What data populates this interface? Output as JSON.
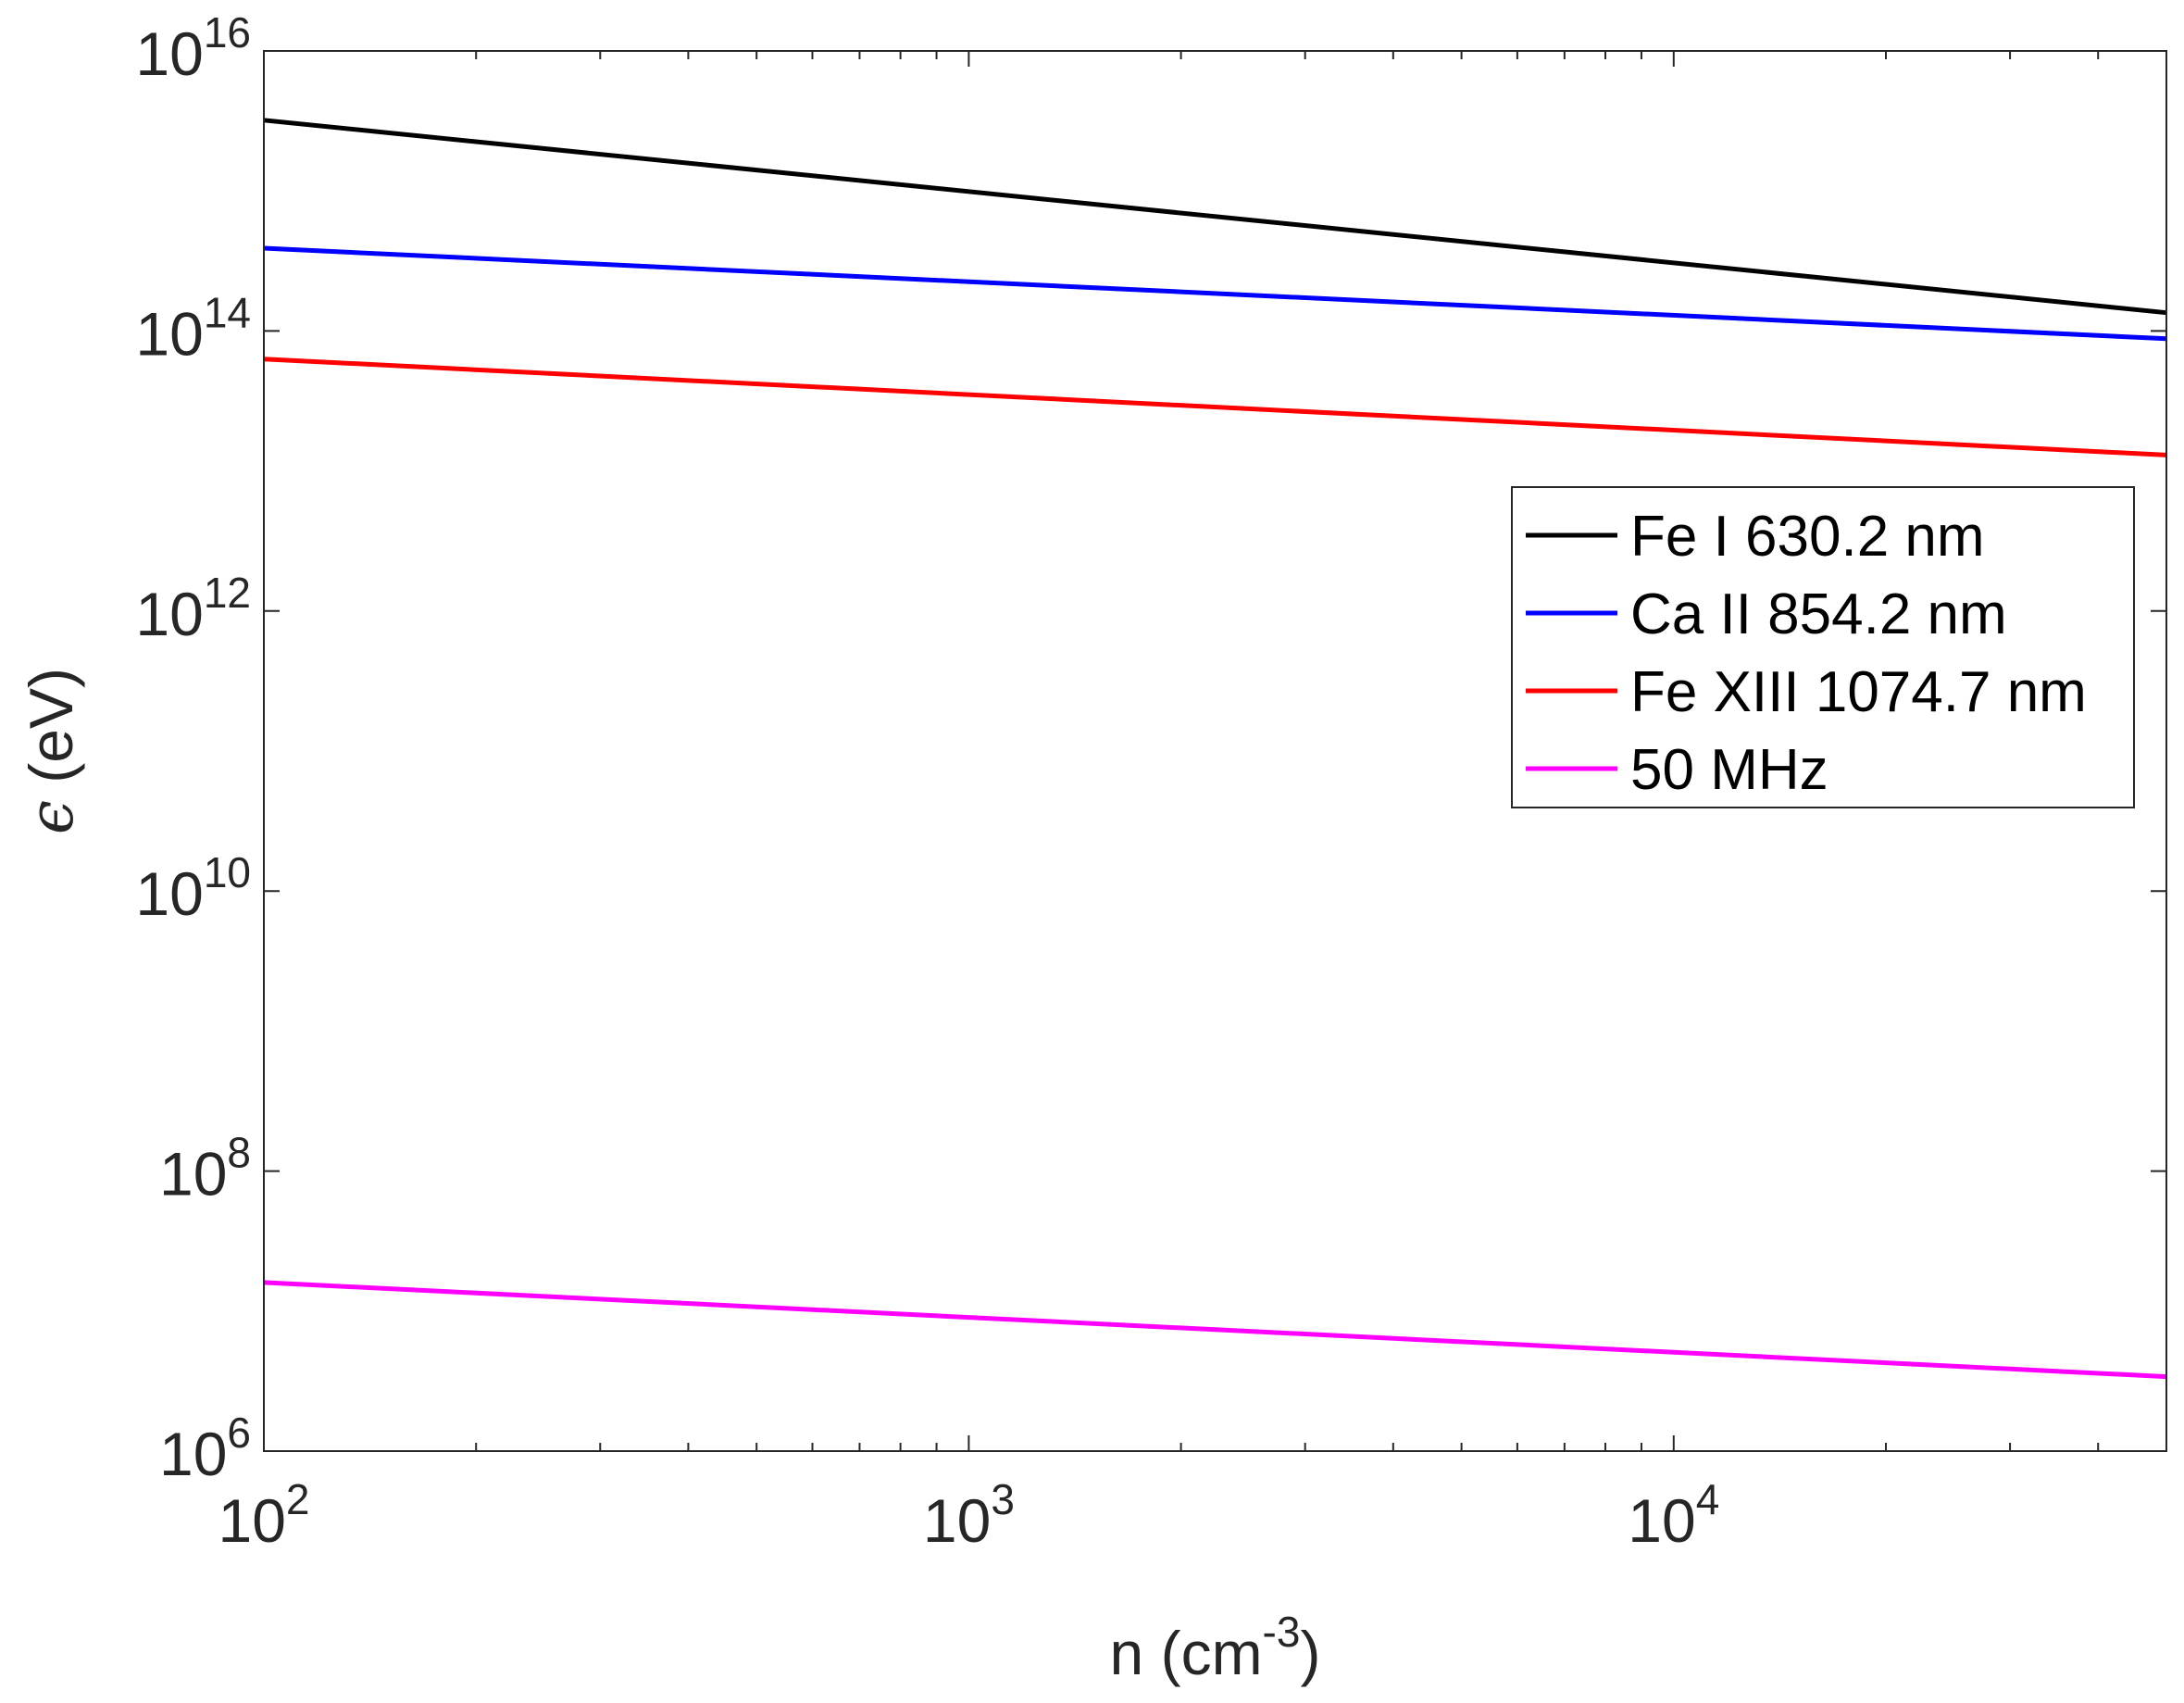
{
  "chart_data": {
    "type": "line",
    "title": "",
    "xlabel": {
      "base": "n (cm",
      "sup": "-3",
      "suffix": ")"
    },
    "ylabel": {
      "symbol": "ϵ",
      "text": " (eV)"
    },
    "xscale": "log",
    "yscale": "log",
    "xlim": [
      100,
      50000
    ],
    "ylim": [
      1000000,
      10000000000000000
    ],
    "x_ticks": [
      {
        "value": 100,
        "base": "10",
        "exp": "2"
      },
      {
        "value": 1000,
        "base": "10",
        "exp": "3"
      },
      {
        "value": 10000,
        "base": "10",
        "exp": "4"
      }
    ],
    "y_ticks": [
      {
        "value": 1000000,
        "base": "10",
        "exp": "6"
      },
      {
        "value": 100000000,
        "base": "10",
        "exp": "8"
      },
      {
        "value": 10000000000,
        "base": "10",
        "exp": "10"
      },
      {
        "value": 1000000000000,
        "base": "10",
        "exp": "12"
      },
      {
        "value": 100000000000000,
        "base": "10",
        "exp": "14"
      },
      {
        "value": 10000000000000000,
        "base": "10",
        "exp": "16"
      }
    ],
    "grid": false,
    "legend_position": "right",
    "series": [
      {
        "name": "Fe I 630.2 nm",
        "color": "#000000",
        "x": [
          100,
          50000
        ],
        "y": [
          3200000000000000.0,
          135000000000000.0
        ]
      },
      {
        "name": "Ca II 854.2 nm",
        "color": "#0000ff",
        "x": [
          100,
          50000
        ],
        "y": [
          390000000000000.0,
          88000000000000.0
        ]
      },
      {
        "name": "Fe XIII 1074.7 nm",
        "color": "#ff0000",
        "x": [
          100,
          50000
        ],
        "y": [
          63000000000000.0,
          13000000000000.0
        ]
      },
      {
        "name": "50 MHz",
        "color": "#ff00ff",
        "x": [
          100,
          50000
        ],
        "y": [
          16000000.0,
          3400000.0
        ]
      }
    ]
  }
}
